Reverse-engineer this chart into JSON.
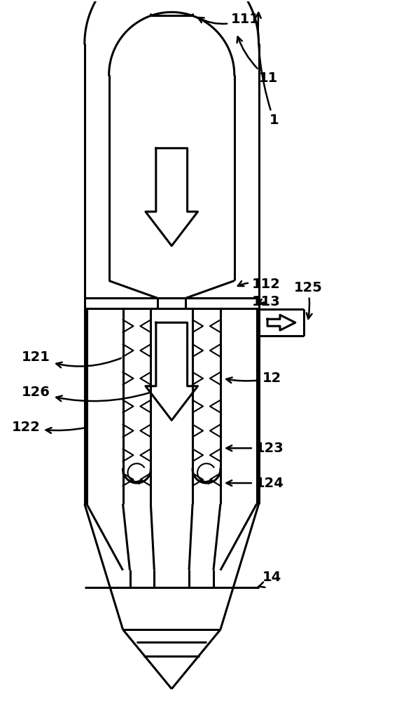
{
  "figsize": [
    5.8,
    10.0
  ],
  "dpi": 100,
  "bg_color": "#ffffff",
  "line_color": "#000000",
  "lw": 2.2,
  "lw_thin": 1.5,
  "label_fontsize": 14,
  "label_fontweight": "bold"
}
